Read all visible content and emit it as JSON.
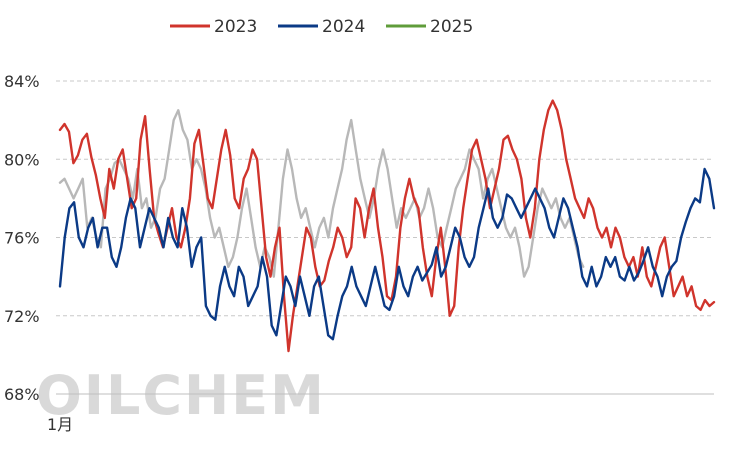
{
  "chart_data": {
    "type": "line",
    "title": "",
    "xlabel": "",
    "ylabel": "",
    "ylim": [
      68,
      84
    ],
    "yticks": [
      68,
      72,
      76,
      80,
      84
    ],
    "ytick_labels": [
      "68%",
      "72%",
      "76%",
      "80%",
      "84%"
    ],
    "x_tick_label": "1月",
    "grid": "horizontal-dashed",
    "legend_position": "top",
    "watermark": "OILCHEM",
    "series": [
      {
        "name": "2023",
        "color": "#d0342c",
        "values": [
          81.5,
          81.8,
          81.4,
          79.8,
          80.2,
          81.0,
          81.3,
          80.1,
          79.2,
          78.0,
          77.0,
          79.5,
          78.5,
          80.0,
          80.5,
          79.0,
          77.5,
          78.0,
          81.0,
          82.2,
          79.5,
          77.0,
          76.2,
          75.5,
          76.5,
          77.5,
          76.0,
          75.5,
          76.5,
          78.0,
          80.8,
          81.5,
          79.8,
          78.0,
          77.5,
          79.0,
          80.5,
          81.5,
          80.2,
          78.0,
          77.5,
          79.0,
          79.5,
          80.5,
          80.0,
          77.5,
          75.0,
          74.0,
          75.5,
          76.5,
          73.0,
          70.2,
          72.0,
          73.5,
          75.0,
          76.5,
          76.0,
          74.5,
          73.5,
          73.8,
          74.8,
          75.5,
          76.5,
          76.0,
          75.0,
          75.5,
          78.0,
          77.5,
          76.0,
          77.5,
          78.5,
          76.5,
          75.0,
          73.0,
          72.8,
          74.0,
          76.5,
          78.0,
          79.0,
          78.0,
          77.5,
          75.5,
          74.0,
          73.0,
          75.0,
          76.5,
          74.5,
          72.0,
          72.5,
          75.5,
          77.5,
          79.0,
          80.5,
          81.0,
          80.0,
          79.0,
          77.5,
          78.5,
          79.5,
          81.0,
          81.2,
          80.5,
          80.0,
          79.0,
          77.0,
          76.0,
          77.5,
          80.0,
          81.5,
          82.5,
          83.0,
          82.5,
          81.5,
          80.0,
          79.0,
          78.0,
          77.5,
          77.0,
          78.0,
          77.5,
          76.5,
          76.0,
          76.5,
          75.5,
          76.5,
          76.0,
          75.0,
          74.5,
          75.0,
          74.0,
          75.5,
          74.0,
          73.5,
          74.5,
          75.5,
          76.0,
          74.5,
          73.0,
          73.5,
          74.0,
          73.0,
          73.5,
          72.5,
          72.3,
          72.8,
          72.5,
          72.7
        ],
        "x_start": 0,
        "x_end": 1
      },
      {
        "name": "2024",
        "color": "#0b3a86",
        "values": [
          73.5,
          76.0,
          77.5,
          77.8,
          76.0,
          75.5,
          76.5,
          77.0,
          75.5,
          76.5,
          76.5,
          75.0,
          74.5,
          75.5,
          77.0,
          78.0,
          77.5,
          75.5,
          76.5,
          77.5,
          77.0,
          76.5,
          75.5,
          77.0,
          76.0,
          75.5,
          77.5,
          76.5,
          74.5,
          75.5,
          76.0,
          72.5,
          72.0,
          71.8,
          73.5,
          74.5,
          73.5,
          73.0,
          74.5,
          74.0,
          72.5,
          73.0,
          73.5,
          75.0,
          74.0,
          71.5,
          71.0,
          72.5,
          74.0,
          73.5,
          72.5,
          74.0,
          73.0,
          72.0,
          73.5,
          74.0,
          72.5,
          71.0,
          70.8,
          72.0,
          73.0,
          73.5,
          74.5,
          73.5,
          73.0,
          72.5,
          73.5,
          74.5,
          73.5,
          72.5,
          72.3,
          73.0,
          74.5,
          73.5,
          73.0,
          74.0,
          74.5,
          73.8,
          74.2,
          74.6,
          75.5,
          74.0,
          74.5,
          75.5,
          76.5,
          76.0,
          75.0,
          74.5,
          75.0,
          76.5,
          77.5,
          78.5,
          77.0,
          76.5,
          77.0,
          78.2,
          78.0,
          77.5,
          77.0,
          77.5,
          78.0,
          78.5,
          78.0,
          77.5,
          76.5,
          76.0,
          77.0,
          78.0,
          77.5,
          76.5,
          75.5,
          74.0,
          73.5,
          74.5,
          73.5,
          74.0,
          75.0,
          74.5,
          75.0,
          74.0,
          73.8,
          74.5,
          73.8,
          74.2,
          74.8,
          75.5,
          74.5,
          74.0,
          73.0,
          74.0,
          74.5,
          74.8,
          76.0,
          76.8,
          77.5,
          78.0,
          77.8,
          79.5,
          79.0,
          77.5
        ],
        "x_start": 0,
        "x_end": 1
      },
      {
        "name": "2025",
        "color": "#5f9c3a",
        "values": [],
        "x_start": 0,
        "x_end": 0
      },
      {
        "name": "",
        "color": "#b8b8b8",
        "values": [
          78.8,
          79.0,
          78.5,
          78.0,
          78.5,
          79.0,
          76.5,
          77.0,
          76.0,
          75.5,
          78.5,
          79.0,
          79.8,
          80.0,
          79.5,
          79.0,
          78.0,
          79.5,
          77.5,
          78.0,
          76.5,
          77.0,
          78.5,
          79.0,
          80.5,
          82.0,
          82.5,
          81.5,
          81.0,
          79.5,
          80.0,
          79.5,
          78.5,
          77.0,
          76.0,
          76.5,
          75.5,
          74.5,
          75.0,
          76.0,
          77.5,
          78.5,
          77.0,
          75.5,
          74.5,
          75.5,
          75.0,
          74.0,
          76.5,
          79.0,
          80.5,
          79.5,
          78.0,
          77.0,
          77.5,
          76.5,
          75.5,
          76.5,
          77.0,
          76.0,
          77.5,
          78.5,
          79.5,
          81.0,
          82.0,
          80.5,
          79.0,
          78.0,
          77.0,
          78.0,
          79.5,
          80.5,
          79.5,
          78.0,
          76.5,
          77.5,
          77.0,
          77.5,
          78.0,
          77.0,
          77.5,
          78.5,
          77.5,
          76.0,
          75.5,
          76.5,
          77.5,
          78.5,
          79.0,
          79.5,
          80.5,
          80.0,
          79.5,
          78.0,
          79.0,
          79.5,
          78.5,
          77.5,
          76.5,
          76.0,
          76.5,
          75.5,
          74.0,
          74.5,
          76.0,
          77.5,
          78.5,
          78.0,
          77.5,
          78.0,
          77.0,
          76.5,
          77.0,
          76.0,
          75.0,
          74.5
        ],
        "x_start": 0,
        "x_end": 0.8
      }
    ]
  }
}
